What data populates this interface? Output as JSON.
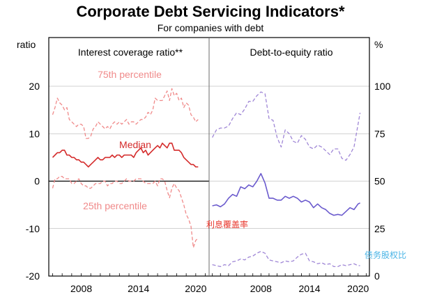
{
  "chart_title": "Corporate Debt Servicing Indicators*",
  "chart_subtitle": "For companies with debt",
  "colors": {
    "frame": "#000000",
    "divider": "#6b6b6b",
    "gridline": "#000000",
    "pct_light_red": "#f08a8a",
    "median_red": "#d42a2a",
    "purple_solid": "#6a5acd",
    "purple_dashed": "#9f86d6",
    "annotation_red": "#e8352b",
    "annotation_blue": "#49b4e6"
  },
  "chart_data": [
    {
      "type": "line",
      "panel": "left",
      "title": "Interest coverage ratio**",
      "unit_label": "ratio",
      "ylim": [
        -20,
        25
      ],
      "yticks": [
        20,
        10,
        0,
        -10,
        -20
      ],
      "xlim": [
        2004.6,
        2021.4
      ],
      "xticks": [
        2008,
        2014,
        2020
      ],
      "zero_line": true,
      "series": [
        {
          "name": "75th percentile",
          "style": "dashed",
          "color": "#f08a8a",
          "x": [
            2005.0,
            2005.25,
            2005.5,
            2005.75,
            2006.0,
            2006.25,
            2006.5,
            2006.75,
            2007.0,
            2007.25,
            2007.5,
            2007.75,
            2008.0,
            2008.25,
            2008.5,
            2008.75,
            2009.0,
            2009.25,
            2009.5,
            2009.75,
            2010.0,
            2010.25,
            2010.5,
            2010.75,
            2011.0,
            2011.25,
            2011.5,
            2011.75,
            2012.0,
            2012.25,
            2012.5,
            2012.75,
            2013.0,
            2013.25,
            2013.5,
            2013.75,
            2014.0,
            2014.25,
            2014.5,
            2014.75,
            2015.0,
            2015.25,
            2015.5,
            2015.75,
            2016.0,
            2016.25,
            2016.5,
            2016.75,
            2017.0,
            2017.25,
            2017.5,
            2017.75,
            2018.0,
            2018.25,
            2018.5,
            2018.75,
            2019.0,
            2019.25,
            2019.5,
            2019.75,
            2020.0,
            2020.25
          ],
          "values": [
            14.0,
            15.5,
            17.5,
            16.5,
            16.0,
            15.0,
            15.5,
            13.0,
            12.5,
            12.0,
            11.5,
            12.0,
            12.0,
            11.5,
            9.0,
            9.0,
            9.5,
            11.0,
            11.5,
            12.5,
            12.0,
            11.5,
            11.0,
            11.5,
            11.0,
            12.0,
            12.5,
            12.0,
            12.5,
            12.0,
            12.5,
            13.0,
            12.0,
            12.5,
            12.5,
            12.0,
            12.5,
            13.0,
            13.0,
            13.5,
            14.5,
            14.0,
            15.0,
            17.5,
            17.0,
            17.0,
            17.0,
            18.0,
            19.0,
            17.0,
            19.5,
            18.0,
            18.5,
            17.0,
            17.5,
            15.5,
            16.5,
            16.0,
            14.0,
            13.5,
            12.5,
            13.0
          ]
        },
        {
          "name": "Median",
          "style": "solid",
          "color": "#d42a2a",
          "x": [
            2005.0,
            2005.25,
            2005.5,
            2005.75,
            2006.0,
            2006.25,
            2006.5,
            2006.75,
            2007.0,
            2007.25,
            2007.5,
            2007.75,
            2008.0,
            2008.25,
            2008.5,
            2008.75,
            2009.0,
            2009.25,
            2009.5,
            2009.75,
            2010.0,
            2010.25,
            2010.5,
            2010.75,
            2011.0,
            2011.25,
            2011.5,
            2011.75,
            2012.0,
            2012.25,
            2012.5,
            2012.75,
            2013.0,
            2013.25,
            2013.5,
            2013.75,
            2014.0,
            2014.25,
            2014.5,
            2014.75,
            2015.0,
            2015.25,
            2015.5,
            2015.75,
            2016.0,
            2016.25,
            2016.5,
            2016.75,
            2017.0,
            2017.25,
            2017.5,
            2017.75,
            2018.0,
            2018.25,
            2018.5,
            2018.75,
            2019.0,
            2019.25,
            2019.5,
            2019.75,
            2020.0,
            2020.25
          ],
          "values": [
            5.0,
            5.5,
            6.0,
            6.0,
            6.5,
            6.5,
            5.5,
            5.5,
            5.0,
            5.0,
            4.5,
            4.5,
            4.0,
            4.0,
            3.5,
            3.0,
            3.5,
            4.0,
            4.5,
            5.0,
            4.5,
            4.5,
            5.0,
            5.0,
            5.0,
            5.5,
            5.0,
            5.5,
            5.5,
            5.0,
            5.5,
            5.5,
            5.5,
            5.5,
            5.0,
            6.0,
            6.5,
            7.0,
            6.0,
            6.5,
            5.5,
            6.0,
            6.5,
            7.0,
            7.5,
            7.0,
            8.0,
            7.5,
            7.0,
            8.0,
            8.0,
            6.5,
            6.5,
            6.5,
            6.0,
            5.0,
            4.5,
            4.0,
            3.5,
            3.5,
            3.0,
            3.0
          ]
        },
        {
          "name": "25th percentile",
          "style": "dashed",
          "color": "#f08a8a",
          "x": [
            2005.0,
            2005.25,
            2005.5,
            2005.75,
            2006.0,
            2006.25,
            2006.5,
            2006.75,
            2007.0,
            2007.25,
            2007.5,
            2007.75,
            2008.0,
            2008.25,
            2008.5,
            2008.75,
            2009.0,
            2009.25,
            2009.5,
            2009.75,
            2010.0,
            2010.25,
            2010.5,
            2010.75,
            2011.0,
            2011.25,
            2011.5,
            2011.75,
            2012.0,
            2012.25,
            2012.5,
            2012.75,
            2013.0,
            2013.25,
            2013.5,
            2013.75,
            2014.0,
            2014.25,
            2014.5,
            2014.75,
            2015.0,
            2015.25,
            2015.5,
            2015.75,
            2016.0,
            2016.25,
            2016.5,
            2016.75,
            2017.0,
            2017.25,
            2017.5,
            2017.75,
            2018.0,
            2018.25,
            2018.5,
            2018.75,
            2019.0,
            2019.25,
            2019.5,
            2019.75,
            2020.0,
            2020.25
          ],
          "values": [
            -1.5,
            0.5,
            0.5,
            1.0,
            1.0,
            0.5,
            0.5,
            0.5,
            -0.5,
            -0.5,
            0.0,
            0.5,
            -0.5,
            -1.0,
            -1.0,
            -1.5,
            -1.5,
            -1.0,
            -0.5,
            -0.5,
            -0.5,
            0.0,
            0.0,
            -1.0,
            -0.5,
            -0.5,
            0.0,
            0.0,
            -0.5,
            -0.5,
            0.0,
            0.5,
            0.0,
            0.0,
            0.0,
            0.5,
            0.5,
            0.5,
            0.0,
            -0.5,
            -0.5,
            -0.5,
            -0.5,
            0.0,
            -1.0,
            0.5,
            0.5,
            0.0,
            -2.0,
            -3.5,
            -1.5,
            -0.5,
            -1.5,
            -2.0,
            -3.5,
            -5.0,
            -7.0,
            -8.0,
            -9.5,
            -14.0,
            -12.5,
            -12.0
          ]
        }
      ],
      "annotations": [
        {
          "text": "75th percentile"
        },
        {
          "text": "Median"
        },
        {
          "text": "25th percentile"
        }
      ]
    },
    {
      "type": "line",
      "panel": "right",
      "title": "Debt-to-equity ratio",
      "unit_label": "%",
      "ylim": [
        0,
        125
      ],
      "yticks": [
        100,
        75,
        50,
        25,
        0
      ],
      "xlim": [
        2001.6,
        2021.4
      ],
      "xticks": [
        2008,
        2014,
        2020
      ],
      "series": [
        {
          "style": "dashed",
          "color": "#9f86d6",
          "x": [
            2002.0,
            2002.5,
            2003.0,
            2003.5,
            2004.0,
            2004.5,
            2005.0,
            2005.5,
            2006.0,
            2006.5,
            2007.0,
            2007.5,
            2008.0,
            2008.5,
            2009.0,
            2009.5,
            2010.0,
            2010.5,
            2011.0,
            2011.5,
            2012.0,
            2012.5,
            2013.0,
            2013.5,
            2014.0,
            2014.5,
            2015.0,
            2015.5,
            2016.0,
            2016.5,
            2017.0,
            2017.5,
            2018.0,
            2018.5,
            2019.0,
            2019.5,
            2020.0,
            2020.25
          ],
          "values": [
            73.0,
            77.0,
            78.0,
            78.0,
            79.0,
            83.0,
            86.0,
            85.0,
            88.0,
            92.0,
            92.0,
            95.0,
            97.0,
            96.0,
            83.0,
            82.0,
            73.0,
            68.0,
            77.0,
            75.0,
            71.0,
            70.0,
            74.0,
            72.0,
            68.0,
            67.0,
            69.0,
            68.0,
            66.0,
            64.0,
            67.0,
            67.0,
            62.0,
            61.0,
            64.0,
            68.0,
            80.0,
            86.0
          ]
        },
        {
          "style": "solid",
          "color": "#6a5acd",
          "x": [
            2002.0,
            2002.5,
            2003.0,
            2003.5,
            2004.0,
            2004.5,
            2005.0,
            2005.5,
            2006.0,
            2006.5,
            2007.0,
            2007.5,
            2008.0,
            2008.5,
            2009.0,
            2009.5,
            2010.0,
            2010.5,
            2011.0,
            2011.5,
            2012.0,
            2012.5,
            2013.0,
            2013.5,
            2014.0,
            2014.5,
            2015.0,
            2015.5,
            2016.0,
            2016.5,
            2017.0,
            2017.5,
            2018.0,
            2018.5,
            2019.0,
            2019.5,
            2020.0,
            2020.25
          ],
          "values": [
            37.0,
            37.5,
            36.5,
            38.0,
            41.0,
            43.0,
            42.0,
            47.0,
            46.0,
            48.0,
            47.0,
            50.0,
            54.0,
            49.0,
            41.0,
            41.0,
            40.0,
            40.0,
            42.0,
            41.0,
            42.0,
            41.0,
            39.0,
            40.0,
            39.0,
            36.0,
            38.0,
            36.0,
            35.0,
            33.0,
            32.0,
            32.5,
            32.0,
            34.0,
            36.0,
            35.0,
            38.0,
            38.5
          ]
        },
        {
          "style": "dashed",
          "color": "#9f86d6",
          "x": [
            2002.0,
            2002.5,
            2003.0,
            2003.5,
            2004.0,
            2004.5,
            2005.0,
            2005.5,
            2006.0,
            2006.5,
            2007.0,
            2007.5,
            2008.0,
            2008.5,
            2009.0,
            2009.5,
            2010.0,
            2010.5,
            2011.0,
            2011.5,
            2012.0,
            2012.5,
            2013.0,
            2013.5,
            2014.0,
            2014.5,
            2015.0,
            2015.5,
            2016.0,
            2016.5,
            2017.0,
            2017.5,
            2018.0,
            2018.5,
            2019.0,
            2019.5,
            2020.0,
            2020.25
          ],
          "values": [
            6.0,
            5.5,
            5.0,
            6.0,
            5.5,
            7.5,
            8.0,
            9.0,
            8.5,
            10.0,
            10.5,
            12.0,
            13.0,
            12.0,
            8.5,
            8.0,
            7.5,
            7.0,
            8.0,
            7.5,
            8.0,
            10.0,
            11.5,
            12.0,
            8.0,
            7.5,
            6.5,
            7.0,
            6.0,
            6.5,
            5.0,
            5.0,
            6.0,
            5.5,
            6.0,
            6.5,
            5.5,
            5.5
          ]
        }
      ]
    }
  ],
  "overlay": {
    "interest_coverage_cn": "利息覆盖率",
    "debt_equity_cn": "债务股权比"
  }
}
